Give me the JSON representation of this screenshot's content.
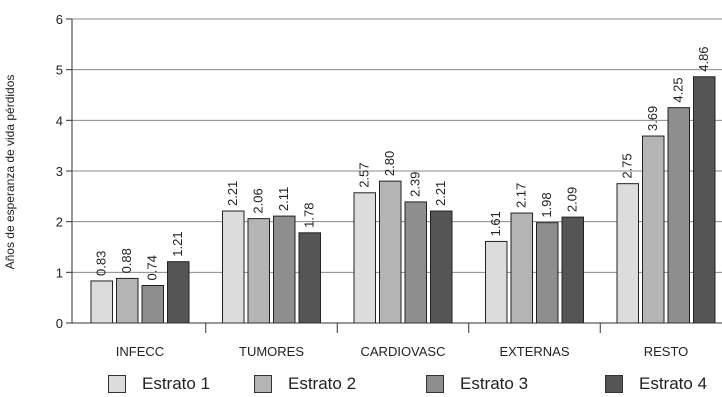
{
  "chart_data": {
    "type": "bar",
    "title": "",
    "xlabel": "",
    "ylabel": "Años de esperanza de vida pérdidos",
    "ylim": [
      0,
      6
    ],
    "yticks": [
      "0",
      "1",
      "2",
      "3",
      "4",
      "5",
      "6"
    ],
    "grid": true,
    "legend_position": "bottom",
    "categories": [
      "INFECC",
      "TUMORES",
      "CARDIOVASC",
      "EXTERNAS",
      "RESTO"
    ],
    "series": [
      {
        "name": "Estrato 1",
        "color": "#dcdcdc",
        "values": [
          0.83,
          2.21,
          2.57,
          1.61,
          2.75
        ],
        "labels": [
          "0.83",
          "2.21",
          "2.57",
          "1.61",
          "2.75"
        ]
      },
      {
        "name": "Estrato 2",
        "color": "#b4b4b4",
        "values": [
          0.88,
          2.06,
          2.8,
          2.17,
          3.69
        ],
        "labels": [
          "0.88",
          "2.06",
          "2.80",
          "2.17",
          "3.69"
        ]
      },
      {
        "name": "Estrato 3",
        "color": "#8e8e8e",
        "values": [
          0.74,
          2.11,
          2.39,
          1.98,
          4.25
        ],
        "labels": [
          "0.74",
          "2.11",
          "2.39",
          "1.98",
          "4.25"
        ]
      },
      {
        "name": "Estrato 4",
        "color": "#555555",
        "values": [
          1.21,
          1.78,
          2.21,
          2.09,
          4.86
        ],
        "labels": [
          "1.21",
          "1.78",
          "2.21",
          "2.09",
          "4.86"
        ]
      }
    ]
  }
}
